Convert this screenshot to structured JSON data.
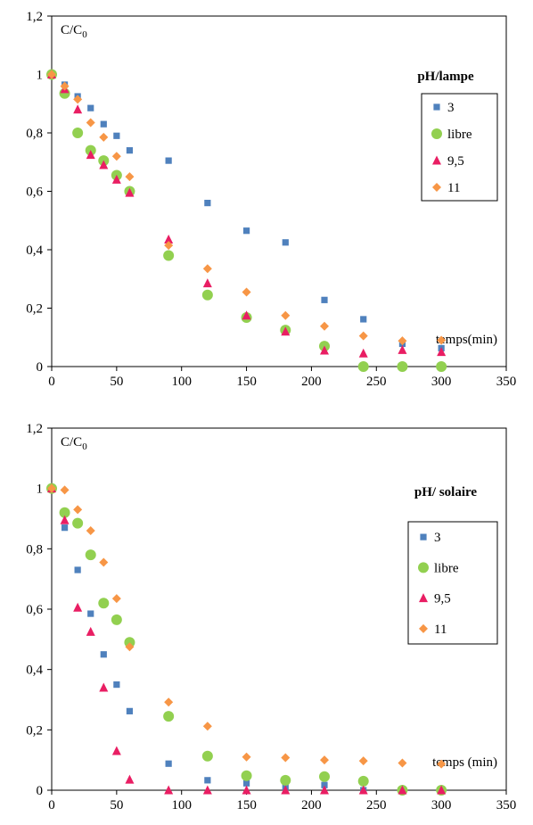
{
  "chart_data": [
    {
      "type": "scatter",
      "xlim": [
        0,
        350
      ],
      "ylim": [
        0,
        1.2
      ],
      "x_ticks": [
        "0",
        "50",
        "100",
        "150",
        "200",
        "250",
        "300",
        "350"
      ],
      "y_ticks": [
        "0",
        "0,2",
        "0,4",
        "0,6",
        "0,8",
        "1",
        "1,2"
      ],
      "ylabel_main": "C/C",
      "ylabel_sub": "0",
      "xlabel": "temps(min)",
      "legend_title": "pH/lampe",
      "legend_position": "right",
      "grid": false,
      "series": [
        {
          "name": "3",
          "marker": "square",
          "color": "#4f81bd",
          "x": [
            0,
            10,
            20,
            30,
            40,
            50,
            60,
            90,
            120,
            150,
            180,
            210,
            240,
            270,
            300
          ],
          "y": [
            1.0,
            0.965,
            0.925,
            0.885,
            0.83,
            0.79,
            0.74,
            0.705,
            0.56,
            0.465,
            0.425,
            0.228,
            0.162,
            0.078,
            0.063
          ]
        },
        {
          "name": "libre",
          "marker": "circle",
          "color": "#92d050",
          "x": [
            0,
            10,
            20,
            30,
            40,
            50,
            60,
            90,
            120,
            150,
            180,
            210,
            240,
            270,
            300
          ],
          "y": [
            1.0,
            0.935,
            0.8,
            0.74,
            0.705,
            0.655,
            0.6,
            0.38,
            0.245,
            0.168,
            0.125,
            0.07,
            0.0,
            0.0,
            0.0
          ]
        },
        {
          "name": "9,5",
          "marker": "triangle",
          "color": "#e91e63",
          "x": [
            0,
            10,
            20,
            30,
            40,
            50,
            60,
            90,
            120,
            150,
            180,
            210,
            240,
            270,
            300
          ],
          "y": [
            1.0,
            0.95,
            0.88,
            0.725,
            0.69,
            0.64,
            0.595,
            0.435,
            0.285,
            0.175,
            0.12,
            0.055,
            0.045,
            0.057,
            0.05
          ]
        },
        {
          "name": "11",
          "marker": "diamond",
          "color": "#f79646",
          "x": [
            0,
            10,
            20,
            30,
            40,
            50,
            60,
            90,
            120,
            150,
            180,
            210,
            240,
            270,
            300
          ],
          "y": [
            1.0,
            0.96,
            0.915,
            0.835,
            0.785,
            0.72,
            0.65,
            0.415,
            0.335,
            0.255,
            0.175,
            0.138,
            0.105,
            0.088,
            0.09
          ]
        }
      ]
    },
    {
      "type": "scatter",
      "xlim": [
        0,
        350
      ],
      "ylim": [
        0,
        1.2
      ],
      "x_ticks": [
        "0",
        "50",
        "100",
        "150",
        "200",
        "250",
        "300",
        "350"
      ],
      "y_ticks": [
        "0",
        "0,2",
        "0,4",
        "0,6",
        "0,8",
        "1",
        "1,2"
      ],
      "ylabel_main": "C/C",
      "ylabel_sub": "0",
      "xlabel": "temps (min)",
      "legend_title": "pH/ solaire",
      "legend_position": "right",
      "grid": false,
      "series": [
        {
          "name": "3",
          "marker": "square",
          "color": "#4f81bd",
          "x": [
            0,
            10,
            20,
            30,
            40,
            50,
            60,
            90,
            120,
            150,
            180,
            210,
            240,
            270,
            300
          ],
          "y": [
            1.0,
            0.87,
            0.73,
            0.585,
            0.45,
            0.35,
            0.262,
            0.088,
            0.033,
            0.023,
            0.01,
            0.017,
            0.0,
            0.0,
            0.0
          ]
        },
        {
          "name": "libre",
          "marker": "circle",
          "color": "#92d050",
          "x": [
            0,
            10,
            20,
            30,
            40,
            50,
            60,
            90,
            120,
            150,
            180,
            210,
            240,
            270,
            300
          ],
          "y": [
            1.0,
            0.92,
            0.885,
            0.78,
            0.62,
            0.565,
            0.49,
            0.245,
            0.113,
            0.048,
            0.033,
            0.045,
            0.03,
            0.0,
            0.0
          ]
        },
        {
          "name": "9,5",
          "marker": "triangle",
          "color": "#e91e63",
          "x": [
            0,
            10,
            20,
            30,
            40,
            50,
            60,
            90,
            120,
            150,
            180,
            210,
            240,
            270,
            300
          ],
          "y": [
            1.0,
            0.895,
            0.605,
            0.525,
            0.34,
            0.13,
            0.035,
            0.0,
            0.0,
            0.0,
            0.0,
            0.0,
            0.0,
            0.0,
            0.0
          ]
        },
        {
          "name": "11",
          "marker": "diamond",
          "color": "#f79646",
          "x": [
            0,
            10,
            20,
            30,
            40,
            50,
            60,
            90,
            120,
            150,
            180,
            210,
            240,
            270,
            300
          ],
          "y": [
            1.0,
            0.995,
            0.93,
            0.86,
            0.755,
            0.635,
            0.475,
            0.292,
            0.212,
            0.11,
            0.108,
            0.1,
            0.097,
            0.09,
            0.087
          ]
        }
      ]
    }
  ]
}
